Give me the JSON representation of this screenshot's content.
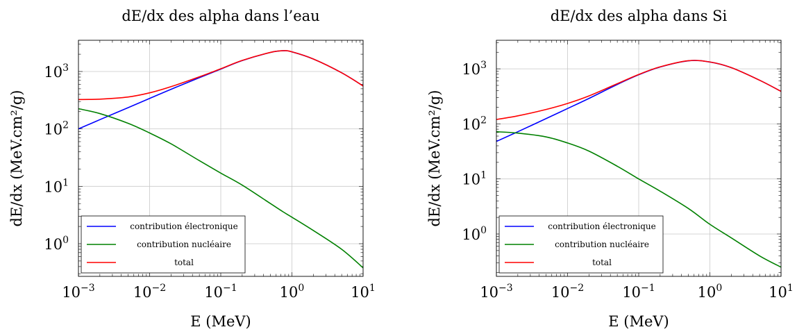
{
  "chart_data": [
    {
      "type": "line",
      "title": "dE/dx des alpha dans l’eau",
      "xlabel": "E (MeV)",
      "ylabel": "dE/dx (MeV.cm²/g)",
      "xscale": "log",
      "yscale": "log",
      "xlim": [
        0.001,
        10
      ],
      "ylim": [
        0.27,
        3500
      ],
      "grid": true,
      "legend_position": "bottom-left",
      "x_ticks": [
        {
          "base": "10",
          "exp": "−3"
        },
        {
          "base": "10",
          "exp": "−2"
        },
        {
          "base": "10",
          "exp": "−1"
        },
        {
          "base": "10",
          "exp": "0"
        },
        {
          "base": "10",
          "exp": "1"
        }
      ],
      "y_ticks": [
        {
          "base": "10",
          "exp": "0"
        },
        {
          "base": "10",
          "exp": "1"
        },
        {
          "base": "10",
          "exp": "2"
        },
        {
          "base": "10",
          "exp": "3"
        }
      ],
      "x": [
        0.001,
        0.002,
        0.005,
        0.01,
        0.02,
        0.05,
        0.1,
        0.2,
        0.5,
        0.75,
        1,
        2,
        5,
        10
      ],
      "series": [
        {
          "name": "contribution électronique",
          "color": "#0000ff",
          "values": [
            100,
            145,
            235,
            340,
            490,
            780,
            1100,
            1550,
            2150,
            2300,
            2200,
            1650,
            950,
            560
          ]
        },
        {
          "name": "contribution nucléaire",
          "color": "#008000",
          "values": [
            225,
            185,
            125,
            85,
            55,
            28,
            17,
            10.5,
            5,
            3.6,
            2.9,
            1.7,
            0.8,
            0.38
          ]
        },
        {
          "name": "total",
          "color": "#ff0000",
          "values": [
            325,
            330,
            360,
            425,
            545,
            808,
            1117,
            1560,
            2155,
            2304,
            2203,
            1652,
            951,
            560
          ]
        }
      ]
    },
    {
      "type": "line",
      "title": "dE/dx des alpha dans Si",
      "xlabel": "E (MeV)",
      "ylabel": "dE/dx (MeV.cm²/g)",
      "xscale": "log",
      "yscale": "log",
      "xlim": [
        0.001,
        10
      ],
      "ylim": [
        0.17,
        3300
      ],
      "grid": true,
      "legend_position": "bottom-left",
      "x_ticks": [
        {
          "base": "10",
          "exp": "−3"
        },
        {
          "base": "10",
          "exp": "−2"
        },
        {
          "base": "10",
          "exp": "−1"
        },
        {
          "base": "10",
          "exp": "0"
        },
        {
          "base": "10",
          "exp": "1"
        }
      ],
      "y_ticks": [
        {
          "base": "10",
          "exp": "0"
        },
        {
          "base": "10",
          "exp": "1"
        },
        {
          "base": "10",
          "exp": "2"
        },
        {
          "base": "10",
          "exp": "3"
        }
      ],
      "x": [
        0.001,
        0.002,
        0.005,
        0.01,
        0.02,
        0.05,
        0.1,
        0.2,
        0.5,
        1,
        2,
        5,
        10
      ],
      "series": [
        {
          "name": "contribution électronique",
          "color": "#0000ff",
          "values": [
            48,
            72,
            125,
            190,
            290,
            520,
            780,
            1080,
            1400,
            1330,
            1050,
            620,
            390
          ]
        },
        {
          "name": "contribution nucléaire",
          "color": "#008000",
          "values": [
            72,
            68,
            58,
            45,
            32,
            17,
            10,
            6,
            2.9,
            1.5,
            0.85,
            0.4,
            0.25
          ]
        },
        {
          "name": "total",
          "color": "#ff0000",
          "values": [
            120,
            140,
            183,
            235,
            322,
            537,
            790,
            1086,
            1403,
            1332,
            1051,
            620,
            390
          ]
        }
      ]
    }
  ]
}
